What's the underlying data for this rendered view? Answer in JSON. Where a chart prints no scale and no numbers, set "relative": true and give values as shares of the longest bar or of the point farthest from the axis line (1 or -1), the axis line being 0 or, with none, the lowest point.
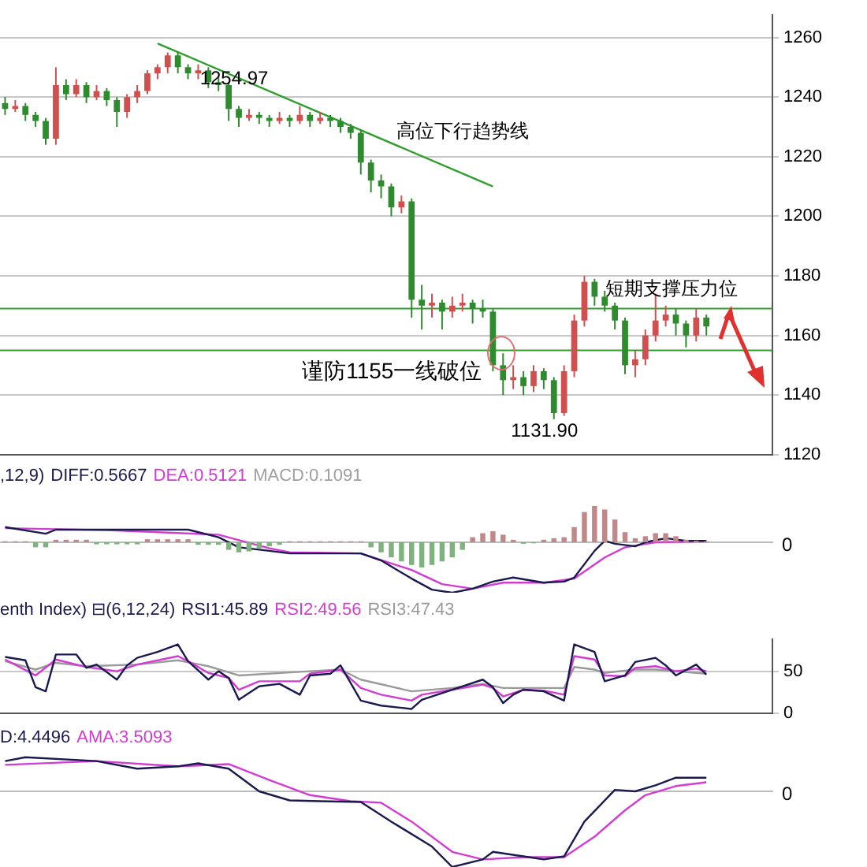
{
  "chart_data": [
    {
      "type": "candlestick",
      "categories": [
        null,
        null,
        null,
        null,
        null,
        null,
        null,
        null,
        null,
        null,
        null,
        null,
        null,
        null,
        null,
        null,
        null,
        null,
        null,
        null,
        null,
        null,
        null,
        null,
        null,
        null,
        null,
        null,
        null,
        null,
        null,
        null,
        null,
        null,
        null,
        null,
        null,
        null,
        null,
        null,
        null,
        null,
        null,
        null,
        null,
        null,
        null,
        null,
        null,
        null,
        null,
        null,
        null,
        null,
        null,
        null,
        null,
        null,
        null,
        null,
        null,
        null,
        null,
        null,
        null,
        null,
        null,
        null,
        null,
        null,
        null,
        null,
        null,
        null,
        null,
        null
      ],
      "ohlc": [
        [
          1238,
          1240,
          1234,
          1236
        ],
        [
          1236,
          1239,
          1235,
          1237
        ],
        [
          1237,
          1238,
          1232,
          1234
        ],
        [
          1234,
          1235,
          1230,
          1232
        ],
        [
          1232,
          1233,
          1224,
          1226
        ],
        [
          1226,
          1250,
          1224,
          1244
        ],
        [
          1244,
          1246,
          1239,
          1241
        ],
        [
          1241,
          1246,
          1240,
          1244
        ],
        [
          1244,
          1245,
          1238,
          1240
        ],
        [
          1240,
          1244,
          1239,
          1242
        ],
        [
          1242,
          1243,
          1237,
          1239
        ],
        [
          1239,
          1240,
          1230,
          1235
        ],
        [
          1235,
          1241,
          1233,
          1240
        ],
        [
          1240,
          1244,
          1238,
          1242
        ],
        [
          1242,
          1249,
          1241,
          1248
        ],
        [
          1248,
          1251,
          1246,
          1250
        ],
        [
          1250,
          1254.97,
          1248,
          1254
        ],
        [
          1254,
          1255,
          1248,
          1250
        ],
        [
          1250,
          1251,
          1246,
          1248
        ],
        [
          1248,
          1251,
          1246,
          1249
        ],
        [
          1249,
          1250,
          1243,
          1245
        ],
        [
          1245,
          1247,
          1242,
          1244
        ],
        [
          1244,
          1245,
          1232,
          1236
        ],
        [
          1236,
          1237,
          1230,
          1233
        ],
        [
          1233,
          1236,
          1232,
          1234
        ],
        [
          1234,
          1235,
          1231,
          1233
        ],
        [
          1233,
          1234,
          1230,
          1232
        ],
        [
          1232,
          1235,
          1231,
          1233
        ],
        [
          1233,
          1234,
          1230,
          1232
        ],
        [
          1232,
          1237,
          1231,
          1234
        ],
        [
          1234,
          1235,
          1230,
          1232
        ],
        [
          1232,
          1235,
          1231,
          1233
        ],
        [
          1233,
          1234,
          1230,
          1232
        ],
        [
          1232,
          1233,
          1228,
          1230
        ],
        [
          1230,
          1231,
          1226,
          1228
        ],
        [
          1228,
          1229,
          1214,
          1218
        ],
        [
          1218,
          1219,
          1208,
          1212
        ],
        [
          1212,
          1214,
          1206,
          1210
        ],
        [
          1210,
          1211,
          1200,
          1203
        ],
        [
          1203,
          1207,
          1201,
          1205
        ],
        [
          1205,
          1206,
          1166,
          1172
        ],
        [
          1172,
          1177,
          1162,
          1170
        ],
        [
          1170,
          1174,
          1166,
          1171
        ],
        [
          1171,
          1172,
          1162,
          1168
        ],
        [
          1168,
          1173,
          1166,
          1170
        ],
        [
          1170,
          1174,
          1168,
          1171
        ],
        [
          1171,
          1172,
          1164,
          1169
        ],
        [
          1169,
          1172,
          1166,
          1168
        ],
        [
          1168,
          1169,
          1148,
          1150
        ],
        [
          1150,
          1154,
          1140,
          1145
        ],
        [
          1145,
          1150,
          1142,
          1146
        ],
        [
          1146,
          1148,
          1140,
          1143
        ],
        [
          1143,
          1150,
          1141,
          1148
        ],
        [
          1148,
          1149,
          1142,
          1145
        ],
        [
          1145,
          1146,
          1131.9,
          1134
        ],
        [
          1134,
          1150,
          1133,
          1148
        ],
        [
          1148,
          1167,
          1146,
          1165
        ],
        [
          1165,
          1180,
          1163,
          1178
        ],
        [
          1178,
          1179,
          1170,
          1173
        ],
        [
          1173,
          1175,
          1168,
          1170
        ],
        [
          1170,
          1171,
          1162,
          1165
        ],
        [
          1165,
          1166,
          1147,
          1150
        ],
        [
          1150,
          1155,
          1146,
          1152
        ],
        [
          1152,
          1162,
          1150,
          1160
        ],
        [
          1160,
          1174,
          1158,
          1165
        ],
        [
          1165,
          1170,
          1163,
          1167
        ],
        [
          1167,
          1169,
          1160,
          1164
        ],
        [
          1164,
          1165,
          1156,
          1160
        ],
        [
          1160,
          1169,
          1158,
          1166
        ],
        [
          1166,
          1167,
          1160,
          1163
        ],
        null,
        null,
        null,
        null,
        null,
        null
      ],
      "colors": [
        "#2e8b2e",
        "#d05050",
        "#2e8b2e",
        "#2e8b2e",
        "#2e8b2e",
        "#d05050",
        "#2e8b2e",
        "#d05050",
        "#2e8b2e",
        "#d05050",
        "#2e8b2e",
        "#2e8b2e",
        "#d05050",
        "#d05050",
        "#d05050",
        "#d05050",
        "#d05050",
        "#2e8b2e",
        "#2e8b2e",
        "#d05050",
        "#2e8b2e",
        "#2e8b2e",
        "#2e8b2e",
        "#2e8b2e",
        "#d05050",
        "#2e8b2e",
        "#2e8b2e",
        "#d05050",
        "#2e8b2e",
        "#d05050",
        "#2e8b2e",
        "#d05050",
        "#2e8b2e",
        "#2e8b2e",
        "#2e8b2e",
        "#2e8b2e",
        "#2e8b2e",
        "#2e8b2e",
        "#2e8b2e",
        "#d05050",
        "#2e8b2e",
        "#2e8b2e",
        "#d05050",
        "#2e8b2e",
        "#d05050",
        "#d05050",
        "#2e8b2e",
        "#2e8b2e",
        "#2e8b2e",
        "#2e8b2e",
        "#d05050",
        "#2e8b2e",
        "#d05050",
        "#2e8b2e",
        "#2e8b2e",
        "#d05050",
        "#d05050",
        "#d05050",
        "#2e8b2e",
        "#2e8b2e",
        "#2e8b2e",
        "#2e8b2e",
        "#d05050",
        "#d05050",
        "#d05050",
        "#d05050",
        "#2e8b2e",
        "#2e8b2e",
        "#d05050",
        "#2e8b2e",
        null,
        null,
        null,
        null,
        null,
        null
      ],
      "series": [
        {
          "type": "line",
          "name": "高位下行趋势线",
          "color": "#2e9e2e",
          "values": [
            null,
            null,
            null,
            null,
            null,
            null,
            null,
            null,
            null,
            null,
            null,
            null,
            null,
            null,
            null,
            1258,
            null,
            null,
            null,
            null,
            null,
            null,
            null,
            null,
            null,
            null,
            null,
            null,
            null,
            null,
            null,
            null,
            null,
            null,
            null,
            null,
            null,
            null,
            null,
            null,
            null,
            null,
            null,
            null,
            null,
            null,
            null,
            null,
            1210,
            null,
            null,
            null,
            null,
            null,
            null,
            null,
            null,
            null,
            null,
            null,
            null,
            null,
            null,
            null,
            null,
            null,
            null,
            null,
            null,
            null,
            null,
            null,
            null,
            null,
            null,
            null
          ]
        }
      ],
      "ylim": [
        1120,
        1267.5
      ],
      "yticks": [
        1120,
        1140,
        1160,
        1180,
        1200,
        1220,
        1240,
        1260
      ],
      "grid": "y",
      "tick_labels": "y",
      "ref_lines": [
        {
          "axis": "y",
          "value": 1169,
          "label": "短期支撑压力位",
          "color": "#2e9e2e"
        },
        {
          "axis": "y",
          "value": 1155,
          "color": "#2e9e2e"
        }
      ],
      "annotations": [
        "1254.97",
        "1131.90",
        "谨防1155一线破位"
      ]
    },
    {
      "type": "bar",
      "title": ",12,9)",
      "relative": true,
      "tick_labels": false,
      "annotations": [
        "0"
      ],
      "categories": [
        null,
        null,
        null,
        null,
        null,
        null,
        null,
        null,
        null,
        null,
        null,
        null,
        null,
        null,
        null,
        null,
        null,
        null,
        null,
        null,
        null,
        null,
        null,
        null,
        null,
        null,
        null,
        null,
        null,
        null,
        null,
        null,
        null,
        null,
        null,
        null,
        null,
        null,
        null,
        null,
        null,
        null,
        null,
        null,
        null,
        null,
        null,
        null,
        null,
        null,
        null,
        null,
        null,
        null,
        null,
        null,
        null,
        null,
        null,
        null,
        null,
        null,
        null,
        null,
        null,
        null,
        null,
        null,
        null,
        null,
        null,
        null,
        null,
        null,
        null,
        null
      ],
      "series": [
        {
          "type": "line",
          "name": "DIFF:0.5667",
          "color": "#1a1a50",
          "values": [
            0.3,
            null,
            null,
            null,
            0.17,
            0.25,
            null,
            null,
            null,
            null,
            0.25,
            null,
            null,
            null,
            null,
            null,
            null,
            null,
            0.25,
            null,
            null,
            0.1,
            null,
            -0.1,
            null,
            null,
            -0.17,
            null,
            -0.22,
            null,
            null,
            null,
            null,
            null,
            null,
            -0.22,
            null,
            -0.36,
            null,
            null,
            -0.72,
            null,
            -0.94,
            null,
            -1,
            null,
            -0.92,
            null,
            -0.78,
            null,
            -0.7,
            null,
            null,
            -0.8,
            null,
            -0.78,
            -0.7,
            null,
            -0.17,
            0.03,
            -0.03,
            null,
            -0.08,
            0,
            null,
            0.08,
            null,
            0.03,
            null,
            0.03,
            null,
            null,
            null,
            null,
            null,
            null
          ]
        },
        {
          "type": "line",
          "name": "DEA:0.5121",
          "color": "#d23cd2",
          "values": [
            0.28,
            null,
            null,
            null,
            null,
            null,
            null,
            null,
            null,
            null,
            0.24,
            null,
            null,
            null,
            null,
            null,
            null,
            null,
            null,
            null,
            null,
            0.15,
            null,
            null,
            null,
            null,
            -0.12,
            null,
            -0.2,
            null,
            null,
            null,
            null,
            null,
            null,
            -0.22,
            null,
            null,
            null,
            null,
            -0.55,
            null,
            null,
            -0.83,
            null,
            null,
            -0.92,
            null,
            null,
            -0.8,
            null,
            null,
            null,
            -0.8,
            null,
            null,
            -0.72,
            null,
            null,
            -0.3,
            null,
            -0.1,
            null,
            null,
            0,
            null,
            null,
            null,
            null,
            0.02,
            null,
            null,
            null,
            null,
            null,
            null
          ]
        },
        {
          "name": "MACD:0.1091",
          "color": "#a0a0a0",
          "colors": [
            "#c08888",
            "#c08888",
            "#c08888",
            "#7fb27f",
            "#7fb27f",
            "#c08888",
            "#c08888",
            "#c08888",
            "#c08888",
            "#7fb27f",
            "#7fb27f",
            "#7fb27f",
            "#7fb27f",
            "#7fb27f",
            "#c08888",
            "#c08888",
            "#c08888",
            "#c08888",
            "#c08888",
            "#7fb27f",
            "#7fb27f",
            "#7fb27f",
            "#7fb27f",
            "#7fb27f",
            "#7fb27f",
            "#7fb27f",
            "#7fb27f",
            "#7fb27f",
            "#c08888",
            "#c08888",
            "#c08888",
            "#c08888",
            "#c08888",
            "#c08888",
            "#c08888",
            "#c08888",
            "#7fb27f",
            "#7fb27f",
            "#7fb27f",
            "#7fb27f",
            "#7fb27f",
            "#7fb27f",
            "#7fb27f",
            "#7fb27f",
            "#7fb27f",
            "#7fb27f",
            "#c08888",
            "#c08888",
            "#c08888",
            "#c08888",
            "#c08888",
            "#7fb27f",
            "#7fb27f",
            "#c08888",
            "#c08888",
            "#c08888",
            "#c08888",
            "#c08888",
            "#c08888",
            "#c08888",
            "#c08888",
            "#c08888",
            "#c08888",
            "#c08888",
            "#c08888",
            "#c08888",
            "#c08888",
            "#c08888",
            "#c08888",
            "#c08888",
            null,
            null,
            null,
            null,
            null,
            null
          ],
          "values": [
            0.02,
            0.02,
            0.02,
            -0.1,
            -0.1,
            0.05,
            0.05,
            0.05,
            0.05,
            -0.04,
            -0.04,
            -0.04,
            -0.04,
            -0.04,
            0.06,
            0.06,
            0.06,
            0.06,
            0.06,
            -0.05,
            -0.05,
            -0.05,
            -0.15,
            -0.2,
            -0.18,
            -0.12,
            -0.08,
            -0.05,
            0.02,
            0.02,
            0.02,
            0.02,
            0.02,
            0.02,
            0.02,
            0.02,
            -0.1,
            -0.2,
            -0.3,
            -0.38,
            -0.45,
            -0.5,
            -0.45,
            -0.38,
            -0.3,
            -0.15,
            0.1,
            0.18,
            0.22,
            0.15,
            0.05,
            -0.03,
            -0.02,
            0.05,
            0.08,
            0.1,
            0.3,
            0.6,
            0.72,
            0.65,
            0.45,
            0.2,
            0.08,
            0.12,
            0.18,
            0.18,
            0.12,
            0.05,
            0.03,
            0.02,
            null,
            null,
            null,
            null,
            null,
            null
          ]
        }
      ]
    },
    {
      "type": "line",
      "title": "enth Index) ⊟(6,12,24)",
      "tick_labels": "y",
      "grid": "y",
      "ylim": [
        0,
        88
      ],
      "yticks": [
        0,
        50
      ],
      "categories": [
        null,
        null,
        null,
        null,
        null,
        null,
        null,
        null,
        null,
        null,
        null,
        null,
        null,
        null,
        null,
        null,
        null,
        null,
        null,
        null,
        null,
        null,
        null,
        null,
        null,
        null,
        null,
        null,
        null,
        null,
        null,
        null,
        null,
        null,
        null,
        null,
        null,
        null,
        null,
        null,
        null,
        null,
        null,
        null,
        null,
        null,
        null,
        null,
        null,
        null,
        null,
        null,
        null,
        null,
        null,
        null,
        null,
        null,
        null,
        null,
        null,
        null,
        null,
        null,
        null,
        null,
        null,
        null,
        null,
        null,
        null,
        null,
        null,
        null,
        null,
        null
      ],
      "series": [
        {
          "name": "RSI1:45.89",
          "color": "#1a1a50",
          "values": [
            67,
            null,
            63,
            31,
            26,
            70,
            null,
            70,
            54,
            58,
            null,
            40,
            57,
            66,
            null,
            73,
            null,
            82,
            62,
            null,
            40,
            50,
            42,
            16,
            null,
            32,
            null,
            35,
            null,
            22,
            45,
            null,
            47,
            57,
            null,
            15,
            null,
            9,
            null,
            null,
            5,
            16,
            null,
            null,
            28,
            null,
            null,
            40,
            31,
            12,
            22,
            28,
            null,
            26,
            null,
            15,
            82,
            null,
            73,
            38,
            null,
            45,
            61,
            null,
            66,
            57,
            45,
            null,
            58,
            46,
            null,
            null,
            null,
            null,
            null,
            null
          ]
        },
        {
          "name": "RSI2:49.56",
          "color": "#d23cd2",
          "values": [
            64,
            null,
            null,
            45,
            null,
            64,
            null,
            null,
            55,
            null,
            null,
            50,
            null,
            58,
            null,
            null,
            null,
            68,
            62,
            null,
            48,
            null,
            42,
            28,
            null,
            38,
            null,
            null,
            null,
            38,
            47,
            null,
            null,
            52,
            null,
            30,
            null,
            22,
            null,
            null,
            15,
            22,
            null,
            null,
            28,
            null,
            null,
            34,
            30,
            20,
            null,
            28,
            null,
            27,
            null,
            22,
            68,
            null,
            64,
            45,
            null,
            44,
            54,
            null,
            56,
            null,
            50,
            null,
            53,
            50,
            null,
            null,
            null,
            null,
            null,
            null
          ]
        },
        {
          "name": "RSI3:47.43",
          "color": "#9a9a9a",
          "values": [
            62,
            null,
            null,
            52,
            null,
            60,
            null,
            null,
            56,
            null,
            null,
            null,
            null,
            58,
            null,
            null,
            null,
            63,
            null,
            null,
            56,
            null,
            null,
            45,
            null,
            null,
            null,
            null,
            null,
            null,
            50,
            null,
            null,
            52,
            null,
            40,
            null,
            null,
            null,
            null,
            26,
            null,
            null,
            null,
            30,
            null,
            null,
            35,
            null,
            30,
            null,
            null,
            null,
            null,
            null,
            30,
            55,
            null,
            52,
            48,
            null,
            null,
            52,
            null,
            52,
            null,
            null,
            null,
            null,
            47,
            null,
            null,
            null,
            null,
            null,
            null
          ]
        }
      ]
    },
    {
      "type": "line",
      "relative": true,
      "tick_labels": false,
      "annotations": [
        "0"
      ],
      "categories": [
        null,
        null,
        null,
        null,
        null,
        null,
        null,
        null,
        null,
        null,
        null,
        null,
        null,
        null,
        null,
        null,
        null,
        null,
        null,
        null,
        null,
        null,
        null,
        null,
        null,
        null,
        null,
        null,
        null,
        null,
        null,
        null,
        null,
        null,
        null,
        null,
        null,
        null,
        null,
        null,
        null,
        null,
        null,
        null,
        null,
        null,
        null,
        null,
        null,
        null,
        null,
        null,
        null,
        null,
        null,
        null,
        null,
        null,
        null,
        null,
        null,
        null,
        null,
        null,
        null,
        null,
        null,
        null,
        null,
        null,
        null,
        null,
        null,
        null,
        null,
        null
      ],
      "series": [
        {
          "name": "D:4.4496",
          "color": "#1a1a50",
          "values": [
            0.4,
            null,
            0.45,
            null,
            null,
            null,
            null,
            null,
            null,
            0.4,
            null,
            null,
            null,
            0.3,
            null,
            null,
            null,
            0.33,
            null,
            0.37,
            null,
            null,
            0.3,
            null,
            null,
            0,
            null,
            null,
            -0.12,
            null,
            null,
            -0.13,
            null,
            null,
            null,
            -0.14,
            null,
            null,
            -0.4,
            null,
            null,
            null,
            -0.73,
            null,
            -1,
            null,
            null,
            -0.9,
            -0.8,
            null,
            null,
            -0.86,
            null,
            -0.9,
            null,
            -0.86,
            null,
            -0.4,
            null,
            null,
            0.02,
            null,
            0,
            null,
            0.08,
            null,
            0.18,
            null,
            null,
            0.18,
            null,
            null,
            null,
            null,
            null,
            null
          ]
        },
        {
          "name": "AMA:3.5093",
          "color": "#d23cd2",
          "values": [
            0.35,
            null,
            null,
            null,
            null,
            null,
            null,
            null,
            null,
            0.4,
            null,
            null,
            null,
            null,
            null,
            null,
            null,
            0.33,
            null,
            null,
            null,
            null,
            0.36,
            null,
            null,
            null,
            0.15,
            null,
            null,
            null,
            -0.05,
            null,
            null,
            null,
            -0.13,
            null,
            null,
            -0.15,
            null,
            null,
            -0.4,
            null,
            null,
            null,
            -0.8,
            null,
            null,
            -0.9,
            null,
            null,
            null,
            -0.87,
            null,
            null,
            null,
            -0.87,
            null,
            null,
            -0.6,
            null,
            null,
            -0.25,
            null,
            -0.05,
            null,
            null,
            0.07,
            null,
            null,
            0.12,
            null,
            null,
            null,
            null,
            null,
            null
          ]
        }
      ]
    }
  ]
}
